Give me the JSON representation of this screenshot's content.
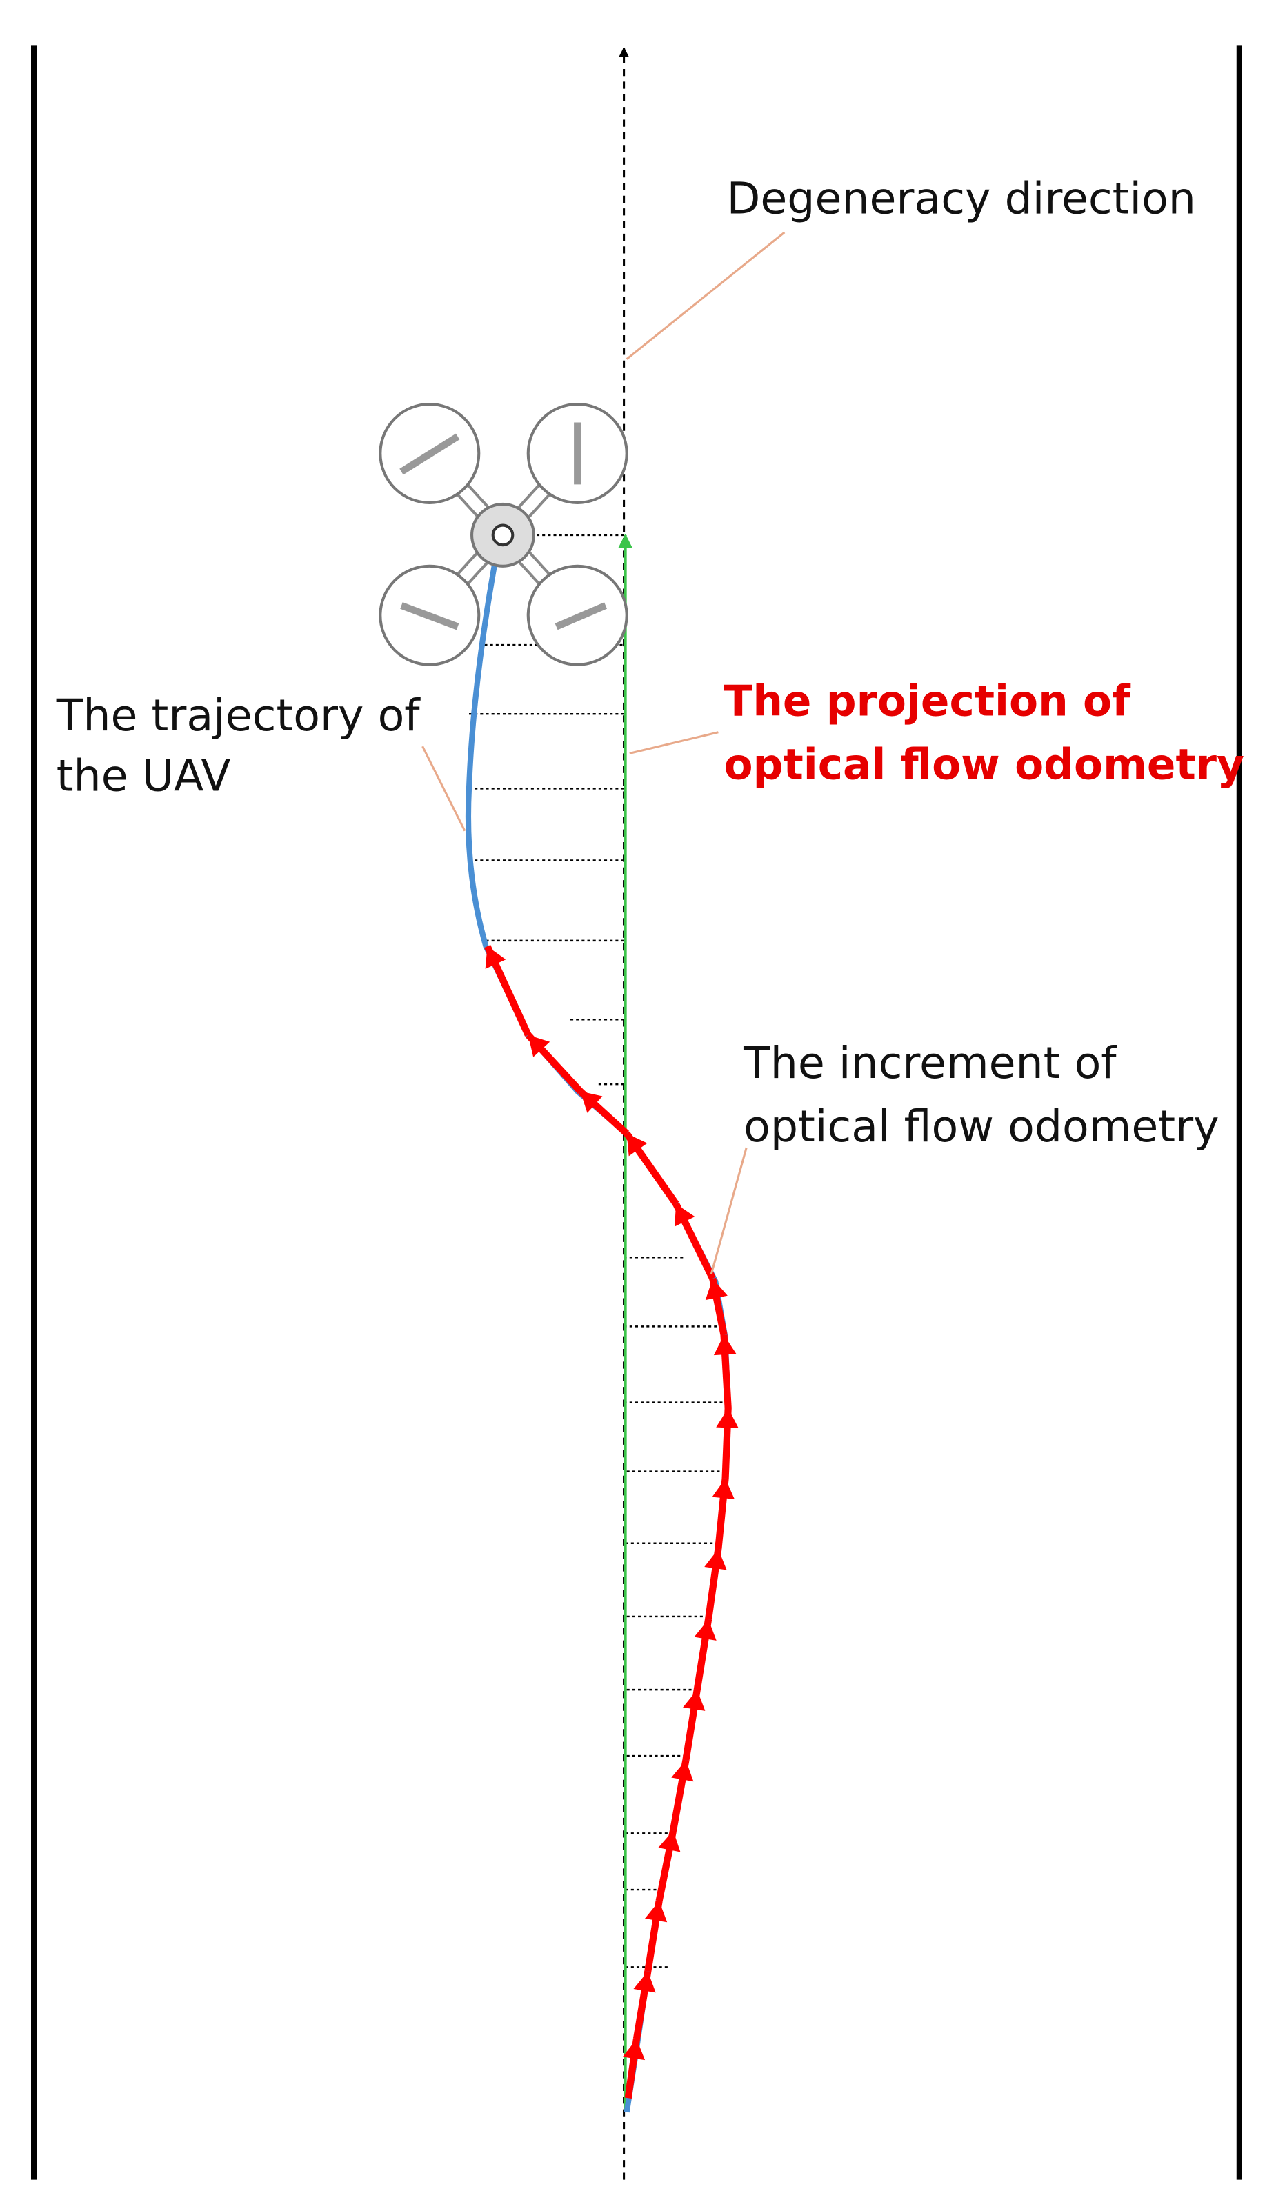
{
  "labels": {
    "degeneracy": {
      "lines": [
        "Degeneracy direction"
      ]
    },
    "projection": {
      "lines": [
        "The projection of",
        "optical flow odometry"
      ]
    },
    "trajectory": {
      "lines": [
        "The trajectory of",
        "the UAV"
      ]
    },
    "increment": {
      "lines": [
        "The increment of",
        "optical flow odometry"
      ]
    }
  }
}
